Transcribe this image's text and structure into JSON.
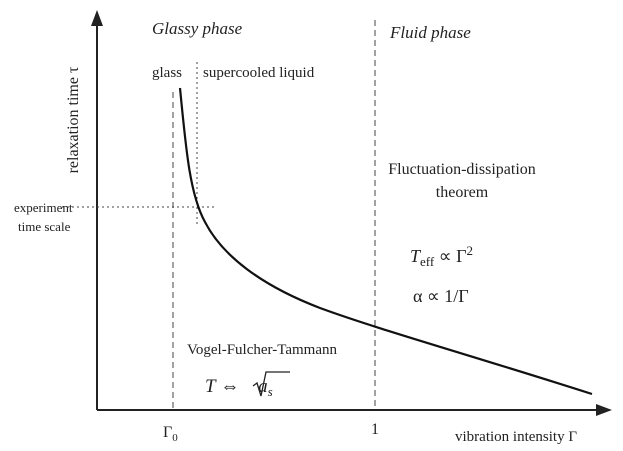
{
  "phases": {
    "glassy": "Glassy phase",
    "fluid": "Fluid phase"
  },
  "regions": {
    "glass": "glass",
    "supercooled": "supercooled liquid"
  },
  "axes": {
    "y_label": "relaxation time τ",
    "x_label": "vibration intensity Γ",
    "x_tick_gamma0": {
      "symbol": "Γ",
      "sub": "0"
    },
    "x_tick_one": "1"
  },
  "experiment": {
    "line1": "experiment",
    "line2": "time scale"
  },
  "fluctuation": {
    "line1": "Fluctuation-dissipation",
    "line2": "theorem"
  },
  "formula_teff": {
    "T": "T",
    "sub": "eff",
    "rel": " ∝ Γ",
    "sup": "2"
  },
  "formula_alpha": "α ∝ 1/Γ",
  "vft": {
    "name": "Vogel-Fulcher-Tammann",
    "T": "T",
    "arrow": " ⇔ ",
    "a": "a",
    "sub": "s"
  }
}
